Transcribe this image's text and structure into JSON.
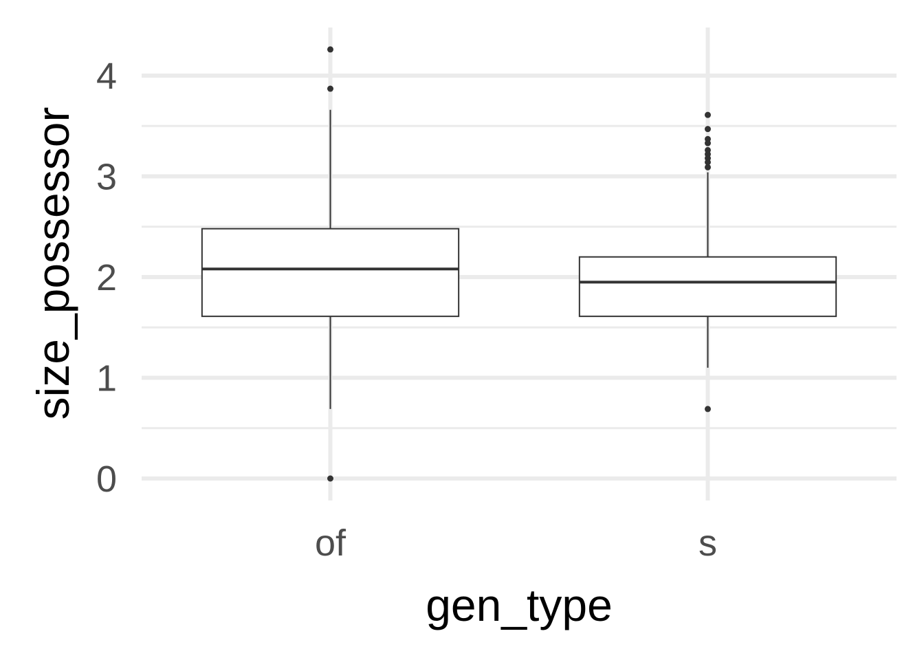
{
  "chart_data": {
    "type": "boxplot",
    "title": "",
    "xlabel": "gen_type",
    "ylabel": "size_possessor",
    "ylim": [
      -0.2,
      4.4
    ],
    "yticks": [
      0,
      1,
      2,
      3,
      4
    ],
    "grid": true,
    "categories": [
      "of",
      "s"
    ],
    "boxes": [
      {
        "category": "of",
        "lower_whisker": 0.69,
        "q1": 1.61,
        "median": 2.08,
        "q3": 2.48,
        "upper_whisker": 3.66,
        "outliers": [
          0.0,
          3.87,
          4.26
        ]
      },
      {
        "category": "s",
        "lower_whisker": 1.1,
        "q1": 1.61,
        "median": 1.95,
        "q3": 2.2,
        "upper_whisker": 3.04,
        "outliers": [
          0.69,
          3.09,
          3.14,
          3.18,
          3.22,
          3.26,
          3.33,
          3.37,
          3.47,
          3.61
        ]
      }
    ],
    "colors": {
      "box_fill": "#ffffff",
      "box_stroke": "#333333",
      "grid_major": "#ebebeb",
      "grid_minor": "#ebebeb",
      "tick_text": "#4d4d4d",
      "axis_title": "#000000"
    }
  }
}
